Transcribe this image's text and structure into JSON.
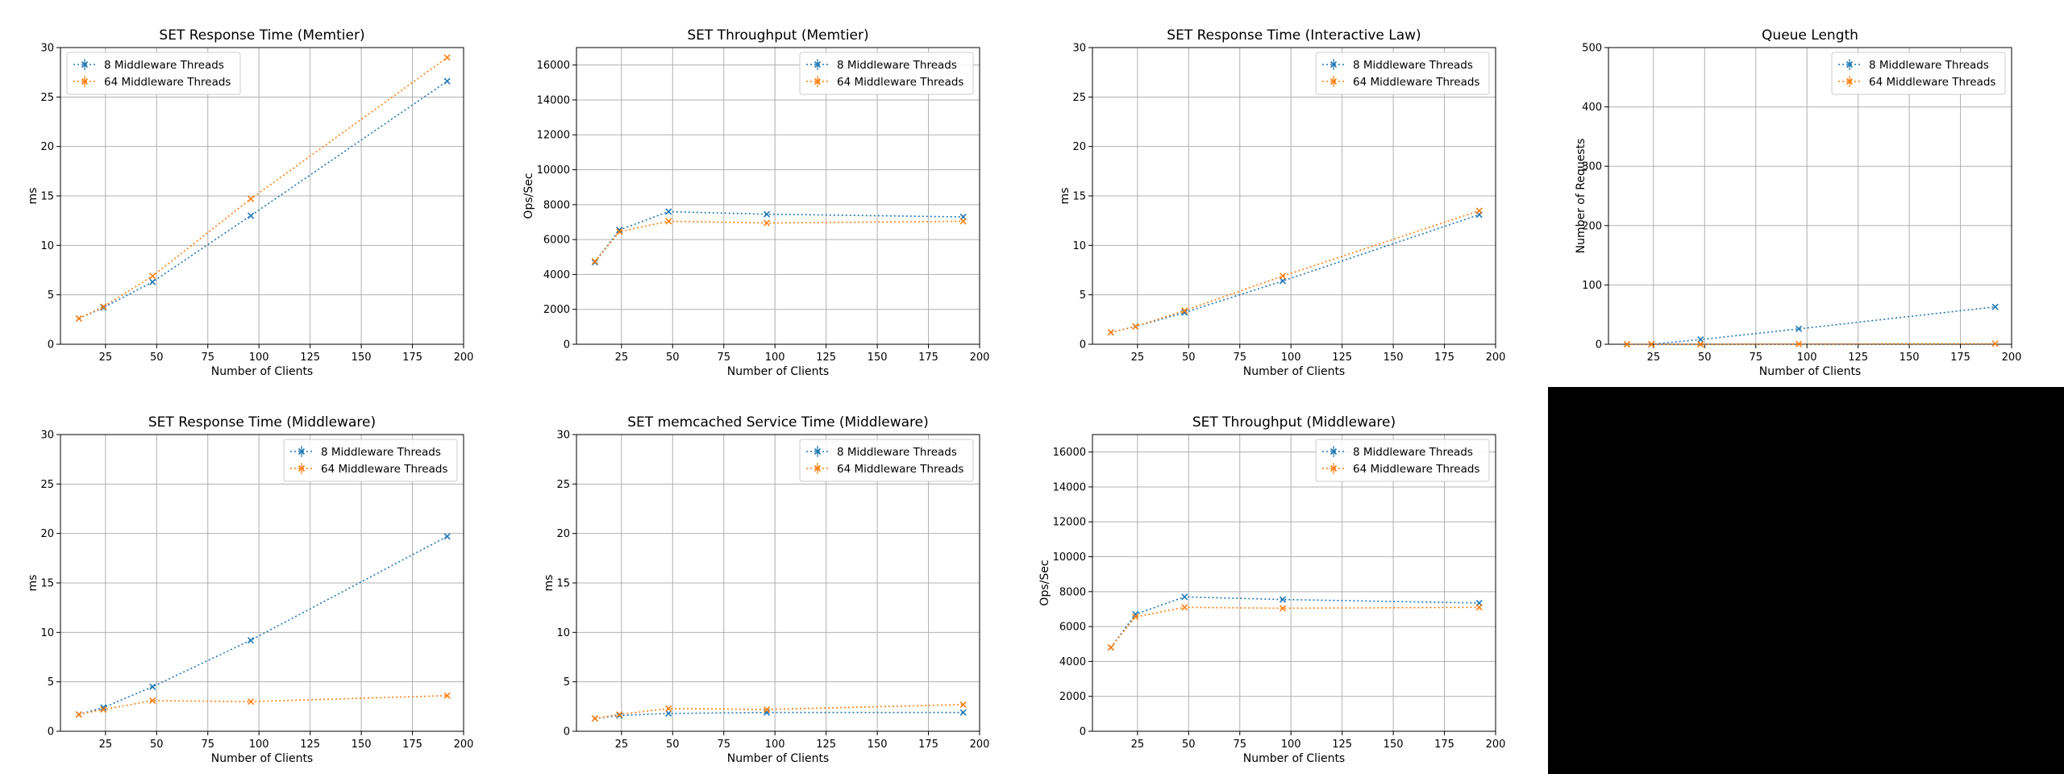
{
  "colors": {
    "blue": "#1f77b4",
    "orange": "#ff7f0e",
    "grid": "#b0b0b0",
    "blank_panel": "#000000"
  },
  "chart_data": [
    {
      "type": "line",
      "title": "SET Response Time (Memtier)",
      "xlabel": "Number of Clients",
      "ylabel": "ms",
      "xlim": [
        3,
        200
      ],
      "ylim": [
        0,
        30
      ],
      "xticks": [
        25,
        50,
        75,
        100,
        125,
        150,
        175,
        200
      ],
      "yticks": [
        0,
        5,
        10,
        15,
        20,
        25,
        30
      ],
      "grid": true,
      "legend": "upper left",
      "x": [
        12,
        24,
        48,
        96,
        192
      ],
      "series": [
        {
          "name": "8 Middleware Threads",
          "color": "#1f77b4",
          "values": [
            2.6,
            3.7,
            6.3,
            13.0,
            26.6
          ]
        },
        {
          "name": "64 Middleware Threads",
          "color": "#ff7f0e",
          "values": [
            2.6,
            3.8,
            6.9,
            14.7,
            29.0
          ]
        }
      ]
    },
    {
      "type": "line",
      "title": "SET Throughput (Memtier)",
      "xlabel": "Number of Clients",
      "ylabel": "Ops/Sec",
      "xlim": [
        3,
        200
      ],
      "ylim": [
        0,
        17000
      ],
      "xticks": [
        25,
        50,
        75,
        100,
        125,
        150,
        175,
        200
      ],
      "yticks": [
        0,
        2000,
        4000,
        6000,
        8000,
        10000,
        12000,
        14000,
        16000
      ],
      "grid": true,
      "legend": "upper right",
      "x": [
        12,
        24,
        48,
        96,
        192
      ],
      "series": [
        {
          "name": "8 Middleware Threads",
          "color": "#1f77b4",
          "values": [
            4700,
            6550,
            7600,
            7450,
            7300
          ]
        },
        {
          "name": "64 Middleware Threads",
          "color": "#ff7f0e",
          "values": [
            4750,
            6450,
            7050,
            6950,
            7050
          ]
        }
      ]
    },
    {
      "type": "line",
      "title": "SET Response Time (Interactive Law)",
      "xlabel": "Number of Clients",
      "ylabel": "ms",
      "xlim": [
        3,
        200
      ],
      "ylim": [
        0,
        30
      ],
      "xticks": [
        25,
        50,
        75,
        100,
        125,
        150,
        175,
        200
      ],
      "yticks": [
        0,
        5,
        10,
        15,
        20,
        25,
        30
      ],
      "grid": true,
      "legend": "upper right",
      "x": [
        12,
        24,
        48,
        96,
        192
      ],
      "series": [
        {
          "name": "8 Middleware Threads",
          "color": "#1f77b4",
          "values": [
            1.2,
            1.8,
            3.2,
            6.4,
            13.1
          ]
        },
        {
          "name": "64 Middleware Threads",
          "color": "#ff7f0e",
          "values": [
            1.2,
            1.8,
            3.4,
            6.9,
            13.5
          ]
        }
      ]
    },
    {
      "type": "line",
      "title": "Queue Length",
      "xlabel": "Number of Clients",
      "ylabel": "Number of Requests",
      "xlim": [
        3,
        200
      ],
      "ylim": [
        0,
        500
      ],
      "xticks": [
        25,
        50,
        75,
        100,
        125,
        150,
        175,
        200
      ],
      "yticks": [
        0,
        100,
        200,
        300,
        400,
        500
      ],
      "grid": true,
      "legend": "upper right",
      "x": [
        12,
        24,
        48,
        96,
        192
      ],
      "series": [
        {
          "name": "8 Middleware Threads",
          "color": "#1f77b4",
          "values": [
            0,
            0,
            8,
            26,
            63
          ]
        },
        {
          "name": "64 Middleware Threads",
          "color": "#ff7f0e",
          "values": [
            0,
            0,
            0,
            0.5,
            1
          ]
        }
      ]
    },
    {
      "type": "line",
      "title": "SET Response Time (Middleware)",
      "xlabel": "Number of Clients",
      "ylabel": "ms",
      "xlim": [
        3,
        200
      ],
      "ylim": [
        0,
        30
      ],
      "xticks": [
        25,
        50,
        75,
        100,
        125,
        150,
        175,
        200
      ],
      "yticks": [
        0,
        5,
        10,
        15,
        20,
        25,
        30
      ],
      "grid": true,
      "legend": "upper right",
      "x": [
        12,
        24,
        48,
        96,
        192
      ],
      "series": [
        {
          "name": "8 Middleware Threads",
          "color": "#1f77b4",
          "values": [
            1.7,
            2.4,
            4.5,
            9.2,
            19.7
          ]
        },
        {
          "name": "64 Middleware Threads",
          "color": "#ff7f0e",
          "values": [
            1.7,
            2.2,
            3.1,
            3.0,
            3.6
          ]
        }
      ]
    },
    {
      "type": "line",
      "title": "SET memcached Service Time (Middleware)",
      "xlabel": "Number of Clients",
      "ylabel": "ms",
      "xlim": [
        3,
        200
      ],
      "ylim": [
        0,
        30
      ],
      "xticks": [
        25,
        50,
        75,
        100,
        125,
        150,
        175,
        200
      ],
      "yticks": [
        0,
        5,
        10,
        15,
        20,
        25,
        30
      ],
      "grid": true,
      "legend": "upper right",
      "x": [
        12,
        24,
        48,
        96,
        192
      ],
      "series": [
        {
          "name": "8 Middleware Threads",
          "color": "#1f77b4",
          "values": [
            1.3,
            1.6,
            1.8,
            1.9,
            1.9
          ]
        },
        {
          "name": "64 Middleware Threads",
          "color": "#ff7f0e",
          "values": [
            1.3,
            1.7,
            2.3,
            2.2,
            2.7
          ]
        }
      ]
    },
    {
      "type": "line",
      "title": "SET Throughput (Middleware)",
      "xlabel": "Number of Clients",
      "ylabel": "Ops/Sec",
      "xlim": [
        3,
        200
      ],
      "ylim": [
        0,
        17000
      ],
      "xticks": [
        25,
        50,
        75,
        100,
        125,
        150,
        175,
        200
      ],
      "yticks": [
        0,
        2000,
        4000,
        6000,
        8000,
        10000,
        12000,
        14000,
        16000
      ],
      "grid": true,
      "legend": "upper right",
      "x": [
        12,
        24,
        48,
        96,
        192
      ],
      "series": [
        {
          "name": "8 Middleware Threads",
          "color": "#1f77b4",
          "values": [
            4800,
            6700,
            7700,
            7550,
            7350
          ]
        },
        {
          "name": "64 Middleware Threads",
          "color": "#ff7f0e",
          "values": [
            4800,
            6550,
            7100,
            7050,
            7100
          ]
        }
      ]
    }
  ]
}
